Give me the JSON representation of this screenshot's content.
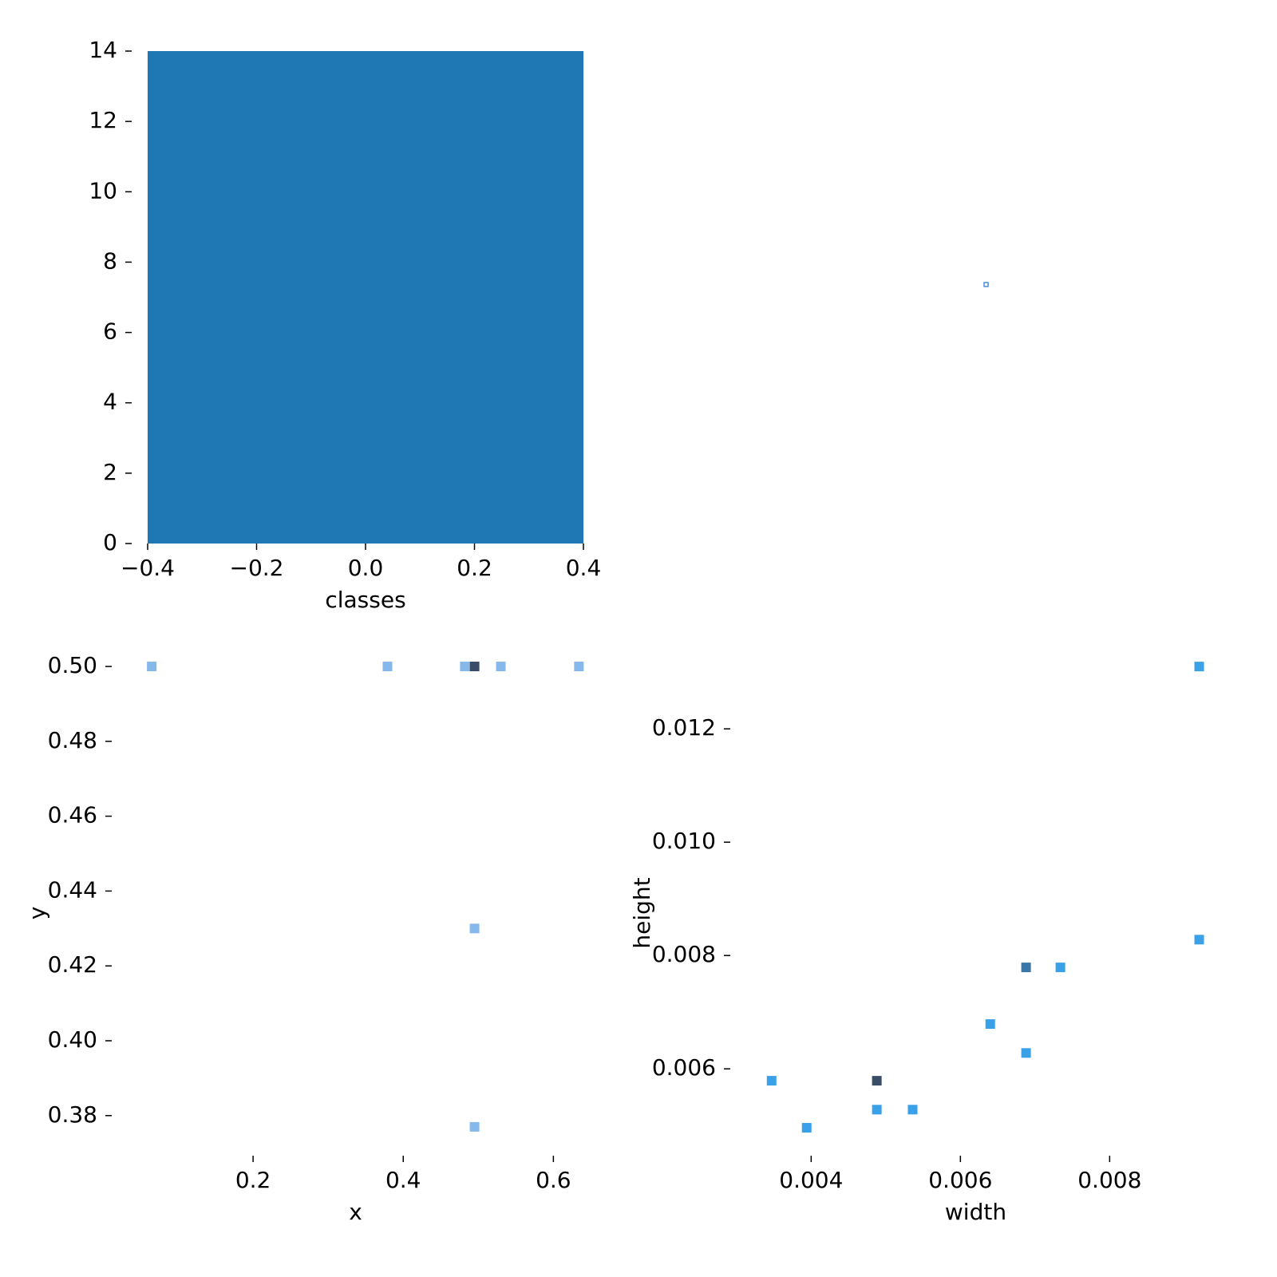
{
  "chart_data": [
    {
      "type": "histogram",
      "xlabel": "classes",
      "bins": [
        -0.4,
        0.4
      ],
      "values": [
        14
      ],
      "color": "#1f77b4",
      "xlim": [
        -0.4,
        0.4
      ],
      "xticks": [
        {
          "value": -0.4,
          "label": "−0.4"
        },
        {
          "value": -0.2,
          "label": "−0.2"
        },
        {
          "value": 0,
          "label": "0.0"
        },
        0.2,
        0.4
      ],
      "ylim": [
        0,
        14
      ],
      "yticks": [
        0,
        2,
        4,
        6,
        8,
        10,
        12,
        14
      ]
    },
    {
      "type": "hist2d",
      "xlabel": "x",
      "ylabel": "y",
      "x": [
        0.065,
        0.379,
        0.482,
        0.495,
        0.53,
        0.634,
        0.495,
        0.495
      ],
      "y": [
        0.5,
        0.5,
        0.5,
        0.5,
        0.5,
        0.5,
        0.43,
        0.377
      ],
      "counts": [
        1,
        1,
        1,
        7,
        1,
        1,
        1,
        1
      ],
      "cmap": [
        "#86b8ec",
        "#3a4d66"
      ],
      "xlim": [
        0.033,
        0.64
      ],
      "xticks": [
        0.2,
        0.4,
        0.6
      ],
      "ylim": [
        0.371,
        0.5015
      ],
      "yticks": [
        {
          "value": 0.5,
          "label": "0.50"
        },
        0.48,
        0.46,
        0.44,
        0.42,
        {
          "value": 0.4,
          "label": "0.40"
        },
        0.38
      ]
    },
    {
      "type": "hist2d",
      "xlabel": "width",
      "ylabel": "height",
      "x": [
        0.0092,
        0.0092,
        0.00688,
        0.00734,
        0.0064,
        0.00688,
        0.00347,
        0.00488,
        0.00488,
        0.00536,
        0.00394
      ],
      "y": [
        0.0131,
        0.00828,
        0.00779,
        0.00779,
        0.00679,
        0.00628,
        0.00579,
        0.00579,
        0.00528,
        0.00528,
        0.00496
      ],
      "counts": [
        1,
        1,
        2,
        1,
        1,
        1,
        1,
        3,
        1,
        1,
        1
      ],
      "cmap": [
        "#3aa0e8",
        "#3a4d66"
      ],
      "xlim": [
        0.00313,
        0.00928
      ],
      "xticks": [
        0.004,
        0.006,
        0.008
      ],
      "ylim": [
        0.00458,
        0.0132
      ],
      "yticks": [
        0.006,
        0.008,
        {
          "value": 0.01,
          "label": "0.010"
        },
        0.012
      ]
    }
  ]
}
